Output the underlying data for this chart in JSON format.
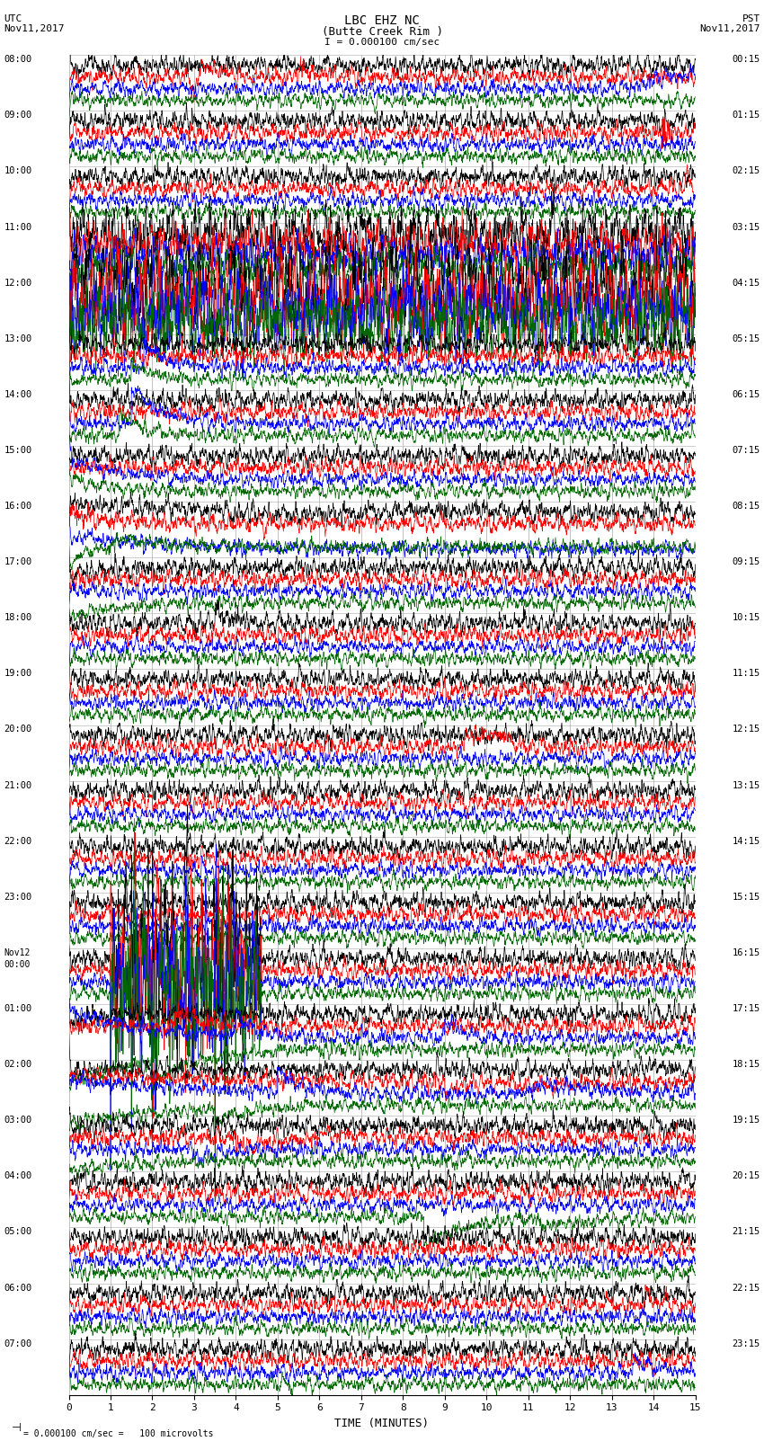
{
  "title_line1": "LBC EHZ NC",
  "title_line2": "(Butte Creek Rim )",
  "title_line3": "I = 0.000100 cm/sec",
  "left_label_top": "UTC",
  "left_label_date": "Nov11,2017",
  "right_label_top": "PST",
  "right_label_date": "Nov11,2017",
  "xlabel": "TIME (MINUTES)",
  "footnote": "= 0.000100 cm/sec =   100 microvolts",
  "bg_color": "#ffffff",
  "grid_color": "#aaaaaa",
  "trace_colors": [
    "#000000",
    "#ff0000",
    "#0000ff",
    "#006600"
  ],
  "fig_width": 8.5,
  "fig_height": 16.13,
  "dpi": 100,
  "left_times": [
    "08:00",
    "09:00",
    "10:00",
    "11:00",
    "12:00",
    "13:00",
    "14:00",
    "15:00",
    "16:00",
    "17:00",
    "18:00",
    "19:00",
    "20:00",
    "21:00",
    "22:00",
    "23:00",
    "Nov12\n00:00",
    "01:00",
    "02:00",
    "03:00",
    "04:00",
    "05:00",
    "06:00",
    "07:00"
  ],
  "right_times": [
    "00:15",
    "01:15",
    "02:15",
    "03:15",
    "04:15",
    "05:15",
    "06:15",
    "07:15",
    "08:15",
    "09:15",
    "10:15",
    "11:15",
    "12:15",
    "13:15",
    "14:15",
    "15:15",
    "16:15",
    "17:15",
    "18:15",
    "19:15",
    "20:15",
    "21:15",
    "22:15",
    "23:15"
  ]
}
